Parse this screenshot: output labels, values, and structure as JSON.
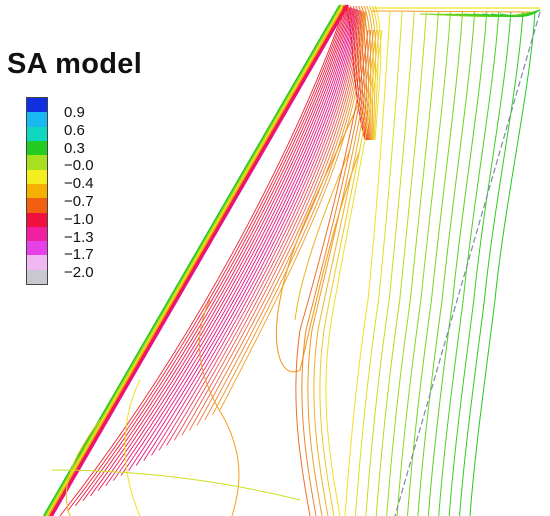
{
  "figure": {
    "title": "SA model"
  },
  "legend": {
    "labels": [
      "0.9",
      "0.6",
      "0.3",
      "−0.0",
      "−0.4",
      "−0.7",
      "−1.0",
      "−1.3",
      "−1.7",
      "−2.0"
    ],
    "colors": [
      "#1030e0",
      "#1ab8f0",
      "#10d8c0",
      "#22cc22",
      "#a8e020",
      "#f2ee20",
      "#f5b000",
      "#f06010",
      "#f01040",
      "#f020a0",
      "#e840e8",
      "#f0b8f0",
      "#c8c8d0"
    ]
  },
  "colors": {
    "green": "#22c822",
    "lime": "#88d820",
    "yellow": "#f0e020",
    "orange": "#f0a020",
    "red": "#f02030",
    "magenta": "#e8108a",
    "gray_dash": "#7a8aa8"
  }
}
